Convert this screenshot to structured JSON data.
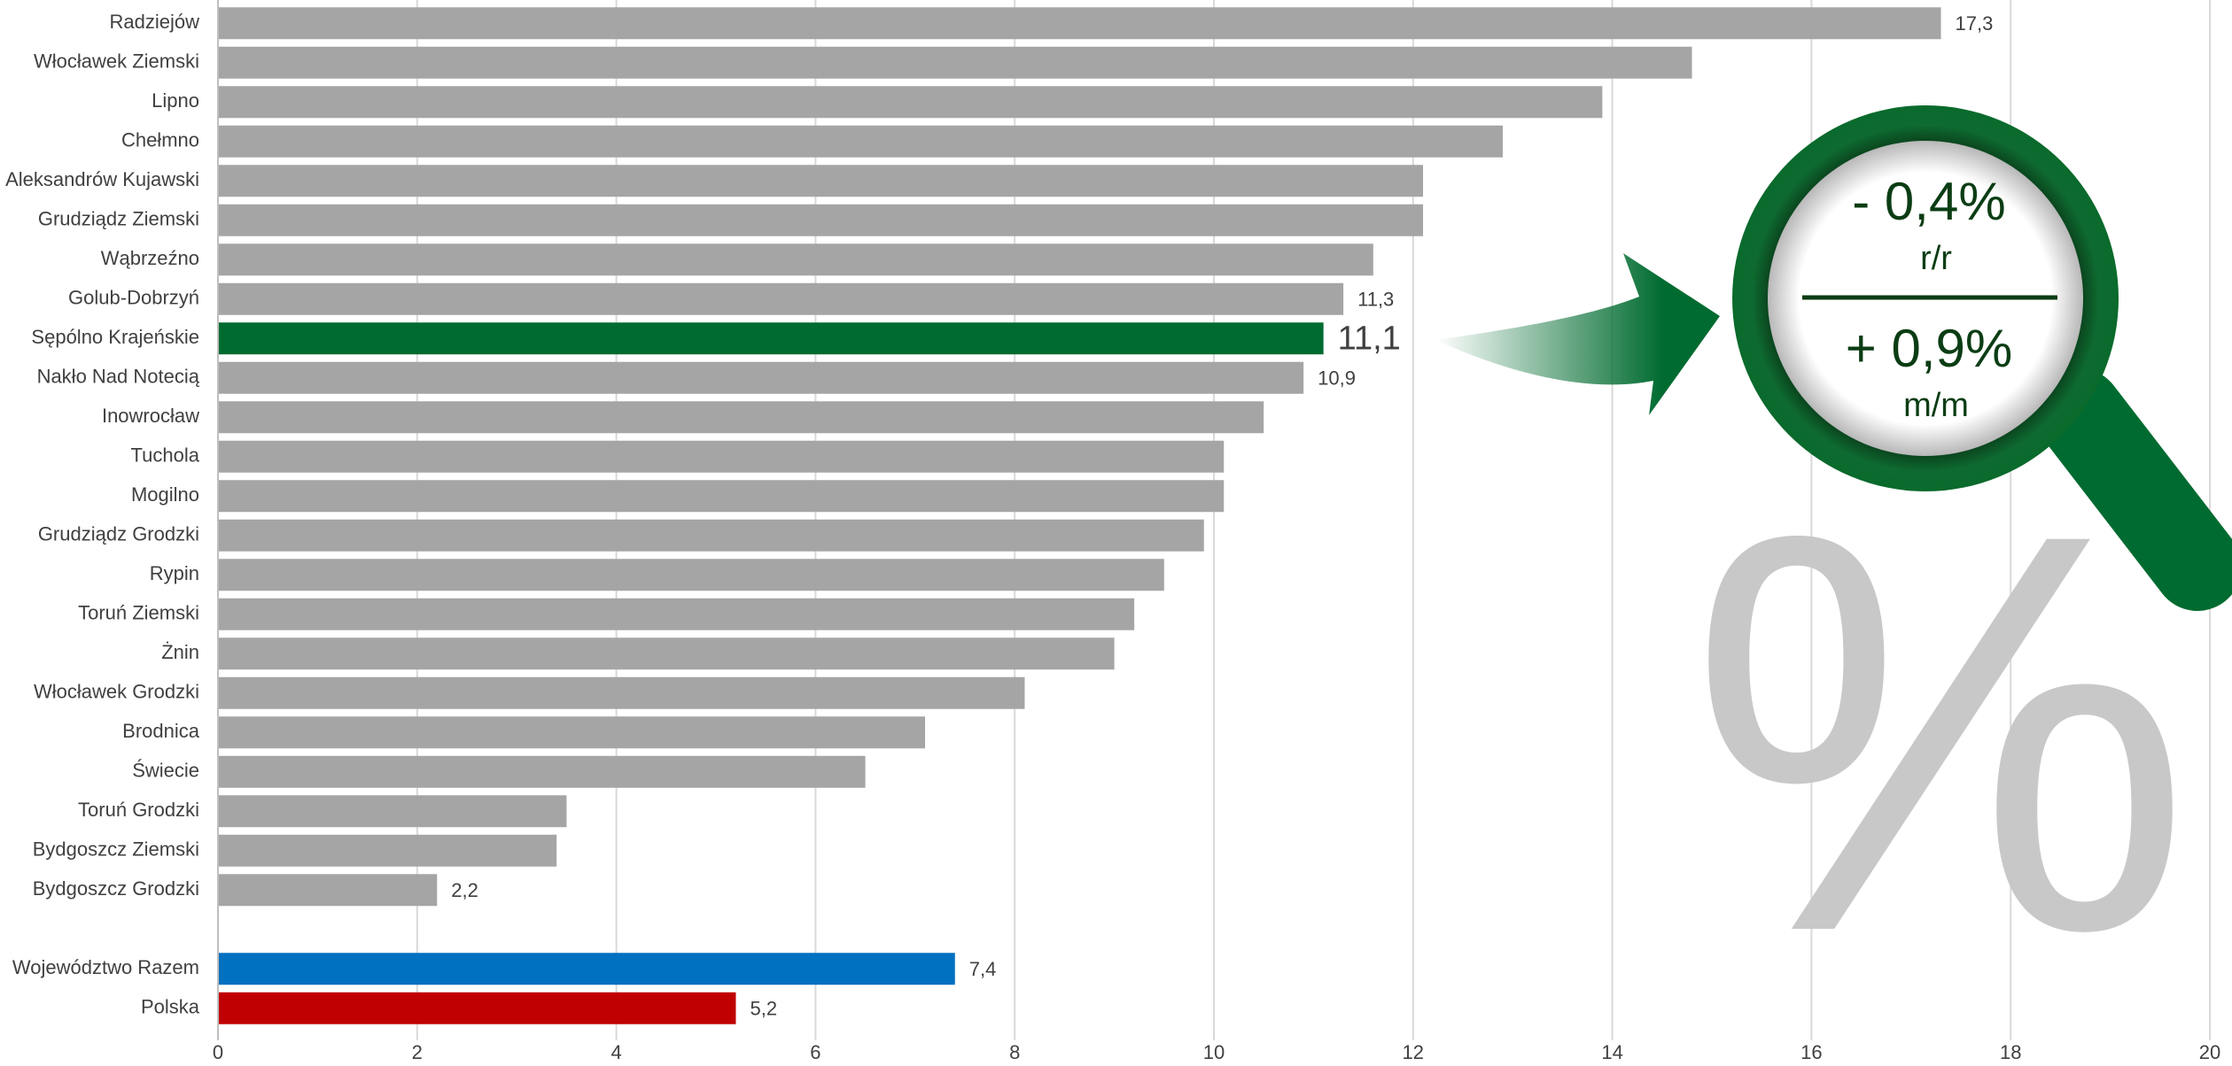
{
  "chart_data": {
    "type": "hbar",
    "categories": [
      "Radziejów",
      "Włocławek Ziemski",
      "Lipno",
      "Chełmno",
      "Aleksandrów Kujawski",
      "Grudziądz Ziemski",
      "Wąbrzeźno",
      "Golub-Dobrzyń",
      "Sępólno Krajeńskie",
      "Nakło Nad Notecią",
      "Inowrocław",
      "Tuchola",
      "Mogilno",
      "Grudziądz Grodzki",
      "Rypin",
      "Toruń Ziemski",
      "Żnin",
      "Włocławek Grodzki",
      "Brodnica",
      "Świecie",
      "Toruń Grodzki",
      "Bydgoszcz Ziemski",
      "Bydgoszcz Grodzki",
      null,
      "Województwo Razem",
      "Polska"
    ],
    "values": [
      17.3,
      14.8,
      13.9,
      12.9,
      12.1,
      12.1,
      11.6,
      11.3,
      11.1,
      10.9,
      10.5,
      10.1,
      10.1,
      9.9,
      9.5,
      9.2,
      9.0,
      8.1,
      7.1,
      6.5,
      3.5,
      3.4,
      2.2,
      null,
      7.4,
      5.2
    ],
    "value_labels": [
      "17,3",
      null,
      null,
      null,
      null,
      null,
      null,
      "11,3",
      "11,1",
      "10,9",
      null,
      null,
      null,
      null,
      null,
      null,
      null,
      null,
      null,
      null,
      null,
      null,
      "2,2",
      null,
      "7,4",
      "5,2"
    ],
    "bar_colors": [
      "#a5a5a5",
      "#a5a5a5",
      "#a5a5a5",
      "#a5a5a5",
      "#a5a5a5",
      "#a5a5a5",
      "#a5a5a5",
      "#a5a5a5",
      "#006b30",
      "#a5a5a5",
      "#a5a5a5",
      "#a5a5a5",
      "#a5a5a5",
      "#a5a5a5",
      "#a5a5a5",
      "#a5a5a5",
      "#a5a5a5",
      "#a5a5a5",
      "#a5a5a5",
      "#a5a5a5",
      "#a5a5a5",
      "#a5a5a5",
      "#a5a5a5",
      null,
      "#0070c0",
      "#c00000"
    ],
    "xlim": [
      0,
      20
    ],
    "xticks": [
      0,
      2,
      4,
      6,
      8,
      10,
      12,
      14,
      16,
      18,
      20
    ],
    "grid": true,
    "watermark": "%",
    "magnifier": {
      "yoy_value": "- 0,4%",
      "yoy_label": "r/r",
      "mom_value": "+ 0,9%",
      "mom_label": "m/m"
    }
  }
}
